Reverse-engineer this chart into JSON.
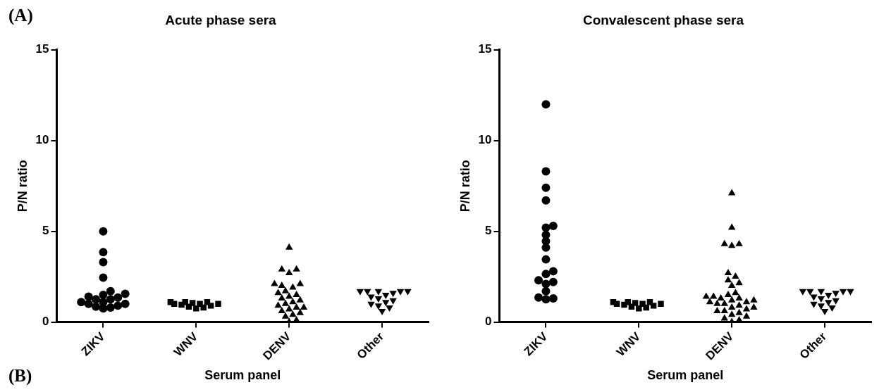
{
  "chart_data": [
    {
      "type": "scatter",
      "title": "Acute phase sera",
      "xlabel": "Serum panel",
      "ylabel": "P/N ratio",
      "categories": [
        "ZIKV",
        "WNV",
        "DENV",
        "Other"
      ],
      "ylim": [
        0,
        15
      ],
      "yticks": [
        0,
        5,
        10,
        15
      ],
      "grid": false,
      "legend": false,
      "annotations": [
        "(A)",
        "(B)"
      ],
      "series": [
        {
          "type": "scatter",
          "marker": "circle",
          "color": "#000000",
          "x": [
            "ZIKV",
            "ZIKV",
            "ZIKV",
            "ZIKV",
            "ZIKV",
            "ZIKV",
            "ZIKV",
            "ZIKV",
            "ZIKV",
            "ZIKV",
            "ZIKV",
            "ZIKV",
            "ZIKV",
            "ZIKV",
            "ZIKV",
            "ZIKV",
            "ZIKV",
            "ZIKV",
            "ZIKV"
          ],
          "values": [
            5.0,
            3.85,
            3.3,
            2.45,
            1.7,
            1.55,
            1.4,
            1.25,
            1.1,
            1.0,
            0.9,
            0.8,
            0.75,
            0.85,
            1.0,
            1.1,
            1.25,
            1.35,
            1.5
          ]
        },
        {
          "type": "scatter",
          "marker": "square",
          "color": "#000000",
          "x": [
            "WNV",
            "WNV",
            "WNV",
            "WNV",
            "WNV",
            "WNV",
            "WNV",
            "WNV",
            "WNV",
            "WNV",
            "WNV",
            "WNV"
          ],
          "values": [
            1.1,
            1.1,
            1.05,
            1.0,
            1.0,
            0.95,
            0.9,
            0.85,
            0.8,
            0.75,
            1.0,
            1.1
          ]
        },
        {
          "type": "scatter",
          "marker": "triangle",
          "color": "#000000",
          "x": [
            "DENV",
            "DENV",
            "DENV",
            "DENV",
            "DENV",
            "DENV",
            "DENV",
            "DENV",
            "DENV",
            "DENV",
            "DENV",
            "DENV",
            "DENV",
            "DENV",
            "DENV",
            "DENV",
            "DENV",
            "DENV",
            "DENV",
            "DENV",
            "DENV",
            "DENV",
            "DENV",
            "DENV",
            "DENV",
            "DENV"
          ],
          "values": [
            4.1,
            2.9,
            2.7,
            2.9,
            2.1,
            2.0,
            1.7,
            1.9,
            2.1,
            1.6,
            1.5,
            1.4,
            1.3,
            1.2,
            1.1,
            1.0,
            0.9,
            0.8,
            0.8,
            0.7,
            0.6,
            0.5,
            0.4,
            0.3,
            0.1,
            0.0
          ]
        },
        {
          "type": "scatter",
          "marker": "triangle-down",
          "color": "#000000",
          "x": [
            "Other",
            "Other",
            "Other",
            "Other",
            "Other",
            "Other",
            "Other",
            "Other",
            "Other",
            "Other",
            "Other",
            "Other",
            "Other",
            "Other",
            "Other"
          ],
          "values": [
            1.7,
            1.7,
            1.7,
            1.7,
            1.7,
            1.6,
            1.5,
            1.4,
            1.3,
            1.2,
            1.1,
            1.0,
            0.9,
            0.8,
            0.6
          ]
        }
      ]
    },
    {
      "type": "scatter",
      "title": "Convalescent phase sera",
      "xlabel": "Serum panel",
      "ylabel": "P/N ratio",
      "categories": [
        "ZIKV",
        "WNV",
        "DENV",
        "Other"
      ],
      "ylim": [
        0,
        15
      ],
      "yticks": [
        0,
        5,
        10,
        15
      ],
      "grid": false,
      "legend": false,
      "series": [
        {
          "type": "scatter",
          "marker": "circle",
          "color": "#000000",
          "x": [
            "ZIKV",
            "ZIKV",
            "ZIKV",
            "ZIKV",
            "ZIKV",
            "ZIKV",
            "ZIKV",
            "ZIKV",
            "ZIKV",
            "ZIKV",
            "ZIKV",
            "ZIKV",
            "ZIKV",
            "ZIKV",
            "ZIKV",
            "ZIKV",
            "ZIKV",
            "ZIKV",
            "ZIKV"
          ],
          "values": [
            12.0,
            8.3,
            7.4,
            6.7,
            5.3,
            5.2,
            4.8,
            4.45,
            4.1,
            3.45,
            2.8,
            2.65,
            2.3,
            2.2,
            2.1,
            1.7,
            1.35,
            1.3,
            1.25
          ]
        },
        {
          "type": "scatter",
          "marker": "square",
          "color": "#000000",
          "x": [
            "WNV",
            "WNV",
            "WNV",
            "WNV",
            "WNV",
            "WNV",
            "WNV",
            "WNV",
            "WNV",
            "WNV",
            "WNV",
            "WNV"
          ],
          "values": [
            1.1,
            1.1,
            1.05,
            1.0,
            1.0,
            0.95,
            0.9,
            0.85,
            0.8,
            0.75,
            1.0,
            1.1
          ]
        },
        {
          "type": "scatter",
          "marker": "triangle",
          "color": "#000000",
          "x": [
            "DENV",
            "DENV",
            "DENV",
            "DENV",
            "DENV",
            "DENV",
            "DENV",
            "DENV",
            "DENV",
            "DENV",
            "DENV",
            "DENV",
            "DENV",
            "DENV",
            "DENV",
            "DENV",
            "DENV",
            "DENV",
            "DENV",
            "DENV",
            "DENV",
            "DENV",
            "DENV",
            "DENV",
            "DENV",
            "DENV",
            "DENV",
            "DENV",
            "DENV",
            "DENV",
            "DENV",
            "DENV",
            "DENV",
            "DENV"
          ],
          "values": [
            7.1,
            5.2,
            4.3,
            4.2,
            4.3,
            2.7,
            2.5,
            2.3,
            2.15,
            2.0,
            1.6,
            1.5,
            1.4,
            1.3,
            1.3,
            1.2,
            1.2,
            1.1,
            1.0,
            1.0,
            0.9,
            0.8,
            0.7,
            0.6,
            0.6,
            0.5,
            0.4,
            0.3,
            0.2,
            0.1,
            0.0,
            1.4,
            1.1,
            0.8
          ]
        },
        {
          "type": "scatter",
          "marker": "triangle-down",
          "color": "#000000",
          "x": [
            "Other",
            "Other",
            "Other",
            "Other",
            "Other",
            "Other",
            "Other",
            "Other",
            "Other",
            "Other",
            "Other",
            "Other",
            "Other",
            "Other",
            "Other"
          ],
          "values": [
            1.7,
            1.7,
            1.7,
            1.7,
            1.7,
            1.6,
            1.5,
            1.4,
            1.3,
            1.2,
            1.1,
            1.0,
            0.9,
            0.8,
            0.6
          ]
        }
      ]
    }
  ]
}
